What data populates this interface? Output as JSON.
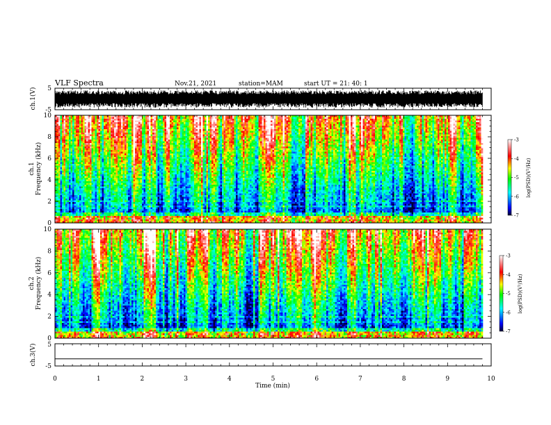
{
  "header": {
    "title": "VLF Spectra",
    "date": "Nov.21, 2021",
    "station": "station=MAM",
    "start": "start  UT  =  21: 40: 1"
  },
  "chart_data": [
    {
      "type": "line",
      "panel": "waveform-ch1",
      "ylabel": "ch.1(V)",
      "ylim": [
        -5,
        5
      ],
      "yticks": [
        5,
        -5
      ],
      "xlim": [
        0,
        10
      ],
      "description_visible": "dense oscillating signal spanning about -4 to 4 V across 0-9.8 min"
    },
    {
      "type": "heatmap",
      "panel": "spectrogram-ch1",
      "ylabel": "Frequency (kHz)",
      "ylabel_prefix": "ch.1",
      "ylim": [
        0,
        10
      ],
      "yticks": [
        0,
        2,
        4,
        6,
        8,
        10
      ],
      "xlim": [
        0,
        10
      ],
      "data_extent_min": 9.8,
      "colorbar": {
        "label": "log(PSD)(V²/Hz)",
        "range": [
          -7,
          -3
        ],
        "ticks": [
          "-3",
          "-4",
          "-5",
          "-6",
          "-7"
        ]
      }
    },
    {
      "type": "heatmap",
      "panel": "spectrogram-ch2",
      "ylabel": "Frequency (kHz)",
      "ylabel_prefix": "ch.2",
      "ylim": [
        0,
        10
      ],
      "yticks": [
        0,
        2,
        4,
        6,
        8,
        10
      ],
      "xlim": [
        0,
        10
      ],
      "data_extent_min": 9.8,
      "colorbar": {
        "label": "log(PSD)(V²/Hz)",
        "range": [
          -7,
          -3
        ],
        "ticks": [
          "-3",
          "-4",
          "-5",
          "-6",
          "-7"
        ]
      }
    },
    {
      "type": "line",
      "panel": "waveform-ch3",
      "ylabel": "ch.3(V)",
      "ylim": [
        -5,
        5
      ],
      "yticks": [
        5,
        -5
      ],
      "xlim": [
        0,
        10
      ],
      "x": [
        0,
        9.8
      ],
      "y": [
        -1.8,
        -1.8
      ]
    }
  ],
  "xaxis": {
    "label": "Time (min)",
    "ticks": [
      "0",
      "1",
      "2",
      "3",
      "4",
      "5",
      "6",
      "7",
      "8",
      "9",
      "10"
    ]
  }
}
